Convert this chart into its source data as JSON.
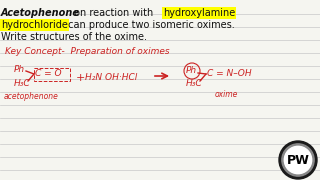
{
  "background_color": "#f5f5f0",
  "line_color": "#c8c8c8",
  "red_color": "#cc2222",
  "yellow_color": "#ffff00",
  "black_color": "#111111",
  "title1_plain": "Acetophenone on reaction with ",
  "title1_highlight": "hydroxylamine",
  "title2_highlight": "hydrochloride",
  "title2_plain": " can produce two isomeric oximes.",
  "title3": "Write structures of the oxime.",
  "key_concept": "Key Concept-  Preparation of oximes",
  "ph_left": "Ph",
  "co_text": "C = O",
  "h3c_left": "H₃C",
  "aceto_label": "acetophenone",
  "plus": "+",
  "reagent": "H₂N OH·HCl",
  "ph_right": "Ph",
  "oxime_text": "C = N–OH",
  "h3c_right": "H₃C",
  "oxime_label": "oxime",
  "pw_text": "PW"
}
